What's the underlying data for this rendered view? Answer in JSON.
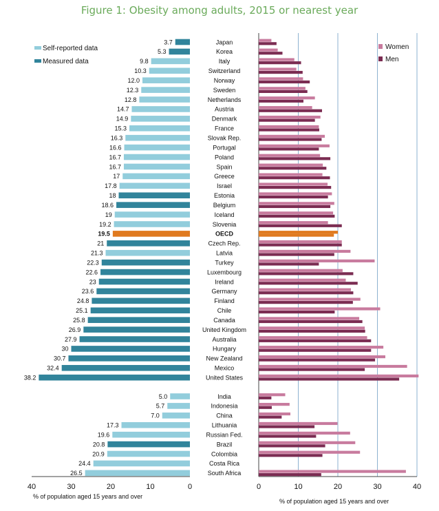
{
  "title": "Figure 1: Obesity among adults, 2015 or nearest year",
  "chart_data": {
    "type": "bar",
    "orientation": "horizontal",
    "title": "Figure 1: Obesity among adults, 2015 or nearest year",
    "left_panel": {
      "xlabel": "% of population aged 15 years and over",
      "xlim": [
        40,
        0
      ],
      "ticks": [
        "40",
        "30",
        "20",
        "10",
        "0"
      ],
      "legend": [
        "Self-reported data",
        "Measured data"
      ]
    },
    "right_panel": {
      "xlabel": "% of population aged 15 years and over",
      "xlim": [
        0,
        40
      ],
      "ticks": [
        "0",
        "10",
        "20",
        "30",
        "40"
      ],
      "legend": [
        "Women",
        "Men"
      ]
    },
    "colors": {
      "self": "#92cddc",
      "measured": "#31849b",
      "oecd": "#e07a1f",
      "women": "#c87b9e",
      "men": "#7b2c52",
      "grid": "#6f9fc4"
    },
    "countries": [
      {
        "name": "Japan",
        "total": "3.7",
        "type": "measured",
        "women": 3.2,
        "men": 4.5
      },
      {
        "name": "Korea",
        "total": "5.3",
        "type": "measured",
        "women": 4.8,
        "men": 6.0
      },
      {
        "name": "Italy",
        "total": "9.8",
        "type": "self",
        "women": 9.0,
        "men": 10.7
      },
      {
        "name": "Switzerland",
        "total": "10.3",
        "type": "self",
        "women": 9.5,
        "men": 11.1
      },
      {
        "name": "Norway",
        "total": "12.0",
        "type": "self",
        "women": 11.2,
        "men": 12.9
      },
      {
        "name": "Sweden",
        "total": "12.3",
        "type": "self",
        "women": 11.8,
        "men": 12.3
      },
      {
        "name": "Netherlands",
        "total": "12.8",
        "type": "self",
        "women": 14.2,
        "men": 11.3
      },
      {
        "name": "Austria",
        "total": "14.7",
        "type": "self",
        "women": 13.5,
        "men": 16.0
      },
      {
        "name": "Denmark",
        "total": "14.9",
        "type": "self",
        "women": 15.6,
        "men": 14.2
      },
      {
        "name": "France",
        "total": "15.3",
        "type": "self",
        "women": 15.2,
        "men": 15.3
      },
      {
        "name": "Slovak Rep.",
        "total": "16.3",
        "type": "self",
        "women": 16.7,
        "men": 15.9
      },
      {
        "name": "Portugal",
        "total": "16.6",
        "type": "self",
        "women": 17.9,
        "men": 15.2
      },
      {
        "name": "Poland",
        "total": "16.7",
        "type": "self",
        "women": 15.5,
        "men": 18.1
      },
      {
        "name": "Spain",
        "total": "16.7",
        "type": "self",
        "women": 16.2,
        "men": 17.1
      },
      {
        "name": "Greece",
        "total": "17",
        "type": "self",
        "women": 16.1,
        "men": 18.0
      },
      {
        "name": "Israel",
        "total": "17.8",
        "type": "self",
        "women": 17.4,
        "men": 18.3
      },
      {
        "name": "Estonia",
        "total": "18",
        "type": "measured",
        "women": 18.5,
        "men": 17.5
      },
      {
        "name": "Belgium",
        "total": "18.6",
        "type": "measured",
        "women": 19.1,
        "men": 18.1
      },
      {
        "name": "Iceland",
        "total": "19",
        "type": "self",
        "women": 18.8,
        "men": 19.2
      },
      {
        "name": "Slovenia",
        "total": "19.2",
        "type": "self",
        "women": 17.5,
        "men": 21.0
      },
      {
        "name": "OECD",
        "total": "19.5",
        "type": "oecd",
        "women": 20.0,
        "men": 19.0
      },
      {
        "name": "Czech Rep.",
        "total": "21",
        "type": "measured",
        "women": 21.0,
        "men": 21.0
      },
      {
        "name": "Latvia",
        "total": "21.3",
        "type": "self",
        "women": 23.2,
        "men": 19.1
      },
      {
        "name": "Turkey",
        "total": "22.3",
        "type": "measured",
        "women": 29.3,
        "men": 15.2
      },
      {
        "name": "Luxembourg",
        "total": "22.6",
        "type": "measured",
        "women": 21.2,
        "men": 23.9
      },
      {
        "name": "Ireland",
        "total": "23",
        "type": "measured",
        "women": 22.0,
        "men": 25.0
      },
      {
        "name": "Germany",
        "total": "23.6",
        "type": "measured",
        "women": 23.3,
        "men": 23.9
      },
      {
        "name": "Finland",
        "total": "24.8",
        "type": "measured",
        "women": 25.7,
        "men": 23.8
      },
      {
        "name": "Chile",
        "total": "25.1",
        "type": "measured",
        "women": 30.7,
        "men": 19.2
      },
      {
        "name": "Canada",
        "total": "25.8",
        "type": "measured",
        "women": 25.4,
        "men": 26.2
      },
      {
        "name": "United Kingdom",
        "total": "26.9",
        "type": "measured",
        "women": 26.8,
        "men": 26.9
      },
      {
        "name": "Australia",
        "total": "27.9",
        "type": "measured",
        "women": 27.4,
        "men": 28.4
      },
      {
        "name": "Hungary",
        "total": "30",
        "type": "measured",
        "women": 31.5,
        "men": 28.4
      },
      {
        "name": "New Zealand",
        "total": "30.7",
        "type": "measured",
        "women": 32.0,
        "men": 29.4
      },
      {
        "name": "Mexico",
        "total": "32.4",
        "type": "measured",
        "women": 37.5,
        "men": 26.8
      },
      {
        "name": "United States",
        "total": "38.2",
        "type": "measured",
        "women": 40.4,
        "men": 35.5
      }
    ],
    "partners": [
      {
        "name": "India",
        "total": "5.0",
        "type": "self",
        "women": 6.7,
        "men": 3.2
      },
      {
        "name": "Indonesia",
        "total": "5.7",
        "type": "self",
        "women": 7.8,
        "men": 3.3
      },
      {
        "name": "China",
        "total": "7.0",
        "type": "self",
        "women": 8.0,
        "men": 5.8
      },
      {
        "name": "Lithuania",
        "total": "17.3",
        "type": "self",
        "women": 19.9,
        "men": 14.1
      },
      {
        "name": "Russian Fed.",
        "total": "19.6",
        "type": "self",
        "women": 23.1,
        "men": 14.5
      },
      {
        "name": "Brazil",
        "total": "20.8",
        "type": "measured",
        "women": 24.4,
        "men": 16.8
      },
      {
        "name": "Colombia",
        "total": "20.9",
        "type": "self",
        "women": 25.6,
        "men": 16.1
      },
      {
        "name": "Costa Rica",
        "total": "24.4",
        "type": "self",
        "women": 0,
        "men": 0
      },
      {
        "name": "South Africa",
        "total": "26.5",
        "type": "self",
        "women": 37.2,
        "men": 15.8
      }
    ]
  }
}
